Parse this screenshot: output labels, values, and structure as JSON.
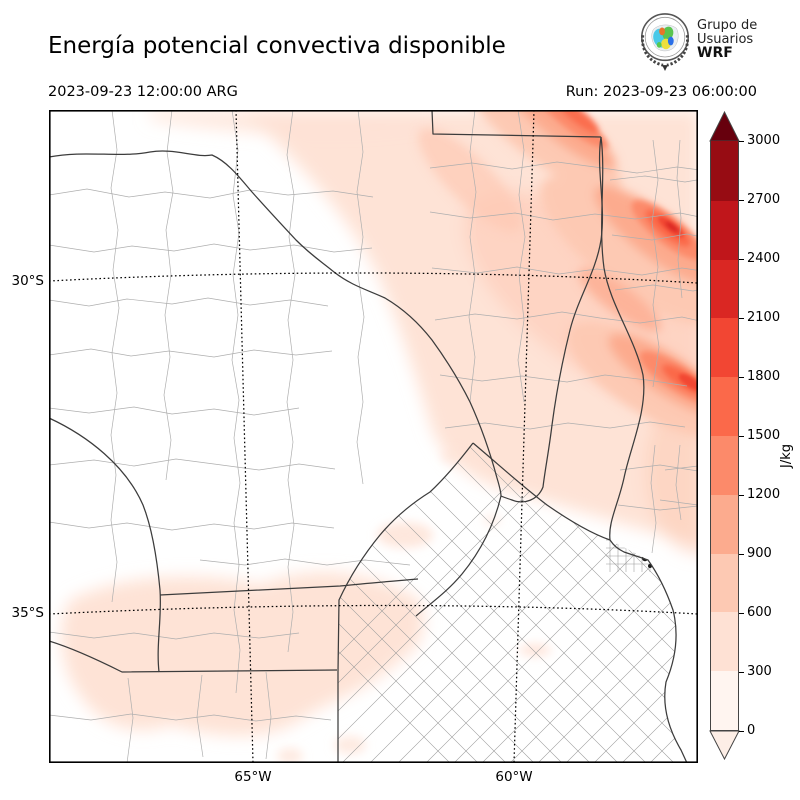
{
  "header": {
    "title": "Energía potencial convectiva disponible",
    "valid_time": "2023-09-23 12:00:00 ARG",
    "run_label": "Run: 2023-09-23 06:00:00",
    "logo": {
      "line1": "Grupo de",
      "line2": "Usuarios",
      "line3": "WRF"
    }
  },
  "map": {
    "y_ticks": [
      "30°S",
      "35°S"
    ],
    "x_ticks": [
      "65°W",
      "60°W"
    ]
  },
  "colorbar": {
    "unit": "J/kg",
    "ticks": [
      0,
      300,
      600,
      900,
      1200,
      1500,
      1800,
      2100,
      2400,
      2700,
      3000
    ],
    "colors": [
      "#fff5f0",
      "#fee1d4",
      "#fdc9b3",
      "#fcab8e",
      "#fc8a6a",
      "#fb694a",
      "#f24633",
      "#da2723",
      "#c0161b",
      "#970c13"
    ],
    "over_color": "#67000d",
    "under_color": "#fdeee6"
  }
}
